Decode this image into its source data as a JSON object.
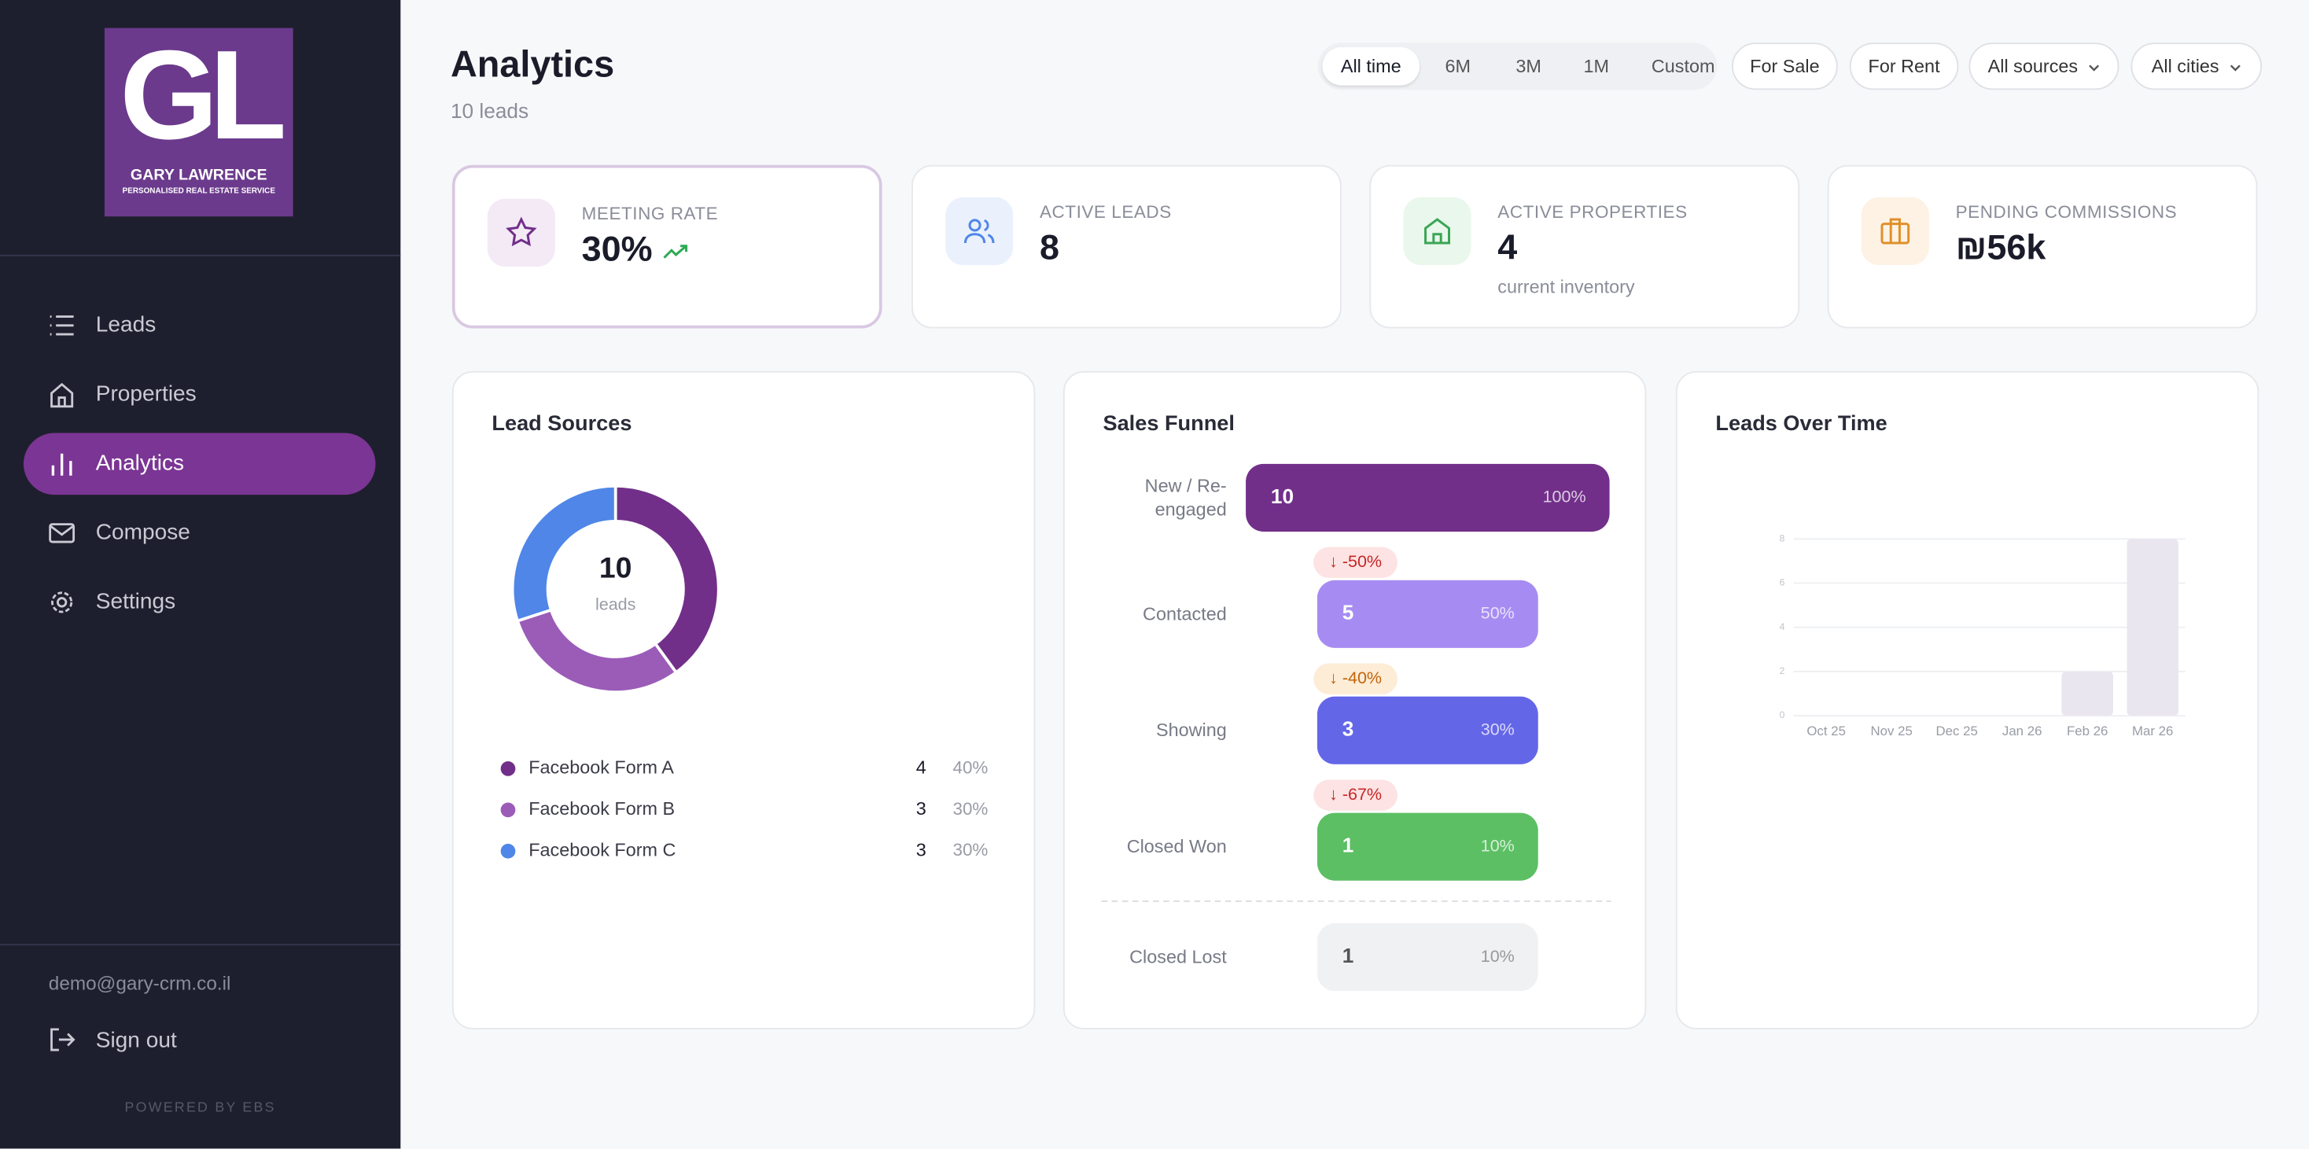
{
  "sidebar": {
    "logo": {
      "initials": "GL",
      "name": "GARY LAWRENCE",
      "tagline": "PERSONALISED REAL ESTATE SERVICE"
    },
    "nav": [
      "Leads",
      "Properties",
      "Analytics",
      "Compose",
      "Settings"
    ],
    "active_nav": 2,
    "email": "demo@gary-crm.co.il",
    "sign_out": "Sign out",
    "powered_by": "POWERED BY EBS"
  },
  "header": {
    "title": "Analytics",
    "subtitle": "10 leads"
  },
  "filters": {
    "periods": [
      "All time",
      "6M",
      "3M",
      "1M",
      "Custom"
    ],
    "active_period": 0,
    "deal_types": [
      "For Sale",
      "For Rent"
    ],
    "dropdowns": [
      "All sources",
      "All cities"
    ]
  },
  "kpis": [
    {
      "label": "MEETING RATE",
      "value": "30%"
    },
    {
      "label": "ACTIVE LEADS",
      "value": 8
    },
    {
      "label": "ACTIVE PROPERTIES",
      "value": 4,
      "note": "current inventory"
    },
    {
      "label": "PENDING COMMISSIONS",
      "value": "₪56k"
    }
  ],
  "lead_sources": {
    "type": "pie",
    "title": "Lead Sources",
    "total": 10,
    "total_label": "leads",
    "categories": [
      "Facebook Form A",
      "Facebook Form B",
      "Facebook Form C"
    ],
    "values": [
      4,
      3,
      3
    ],
    "percent_labels": [
      "40%",
      "30%",
      "30%"
    ],
    "colors": [
      "#722f8a",
      "#9b5cb8",
      "#4f86e8"
    ]
  },
  "funnel": {
    "type": "funnel",
    "title": "Sales Funnel",
    "stages": [
      {
        "name": "New / Re-engaged",
        "value": 10,
        "percent_label": "100%",
        "color": "#722f8a"
      },
      {
        "name": "Contacted",
        "value": 5,
        "percent_label": "50%",
        "color": "#a68cf2"
      },
      {
        "name": "Showing",
        "value": 3,
        "percent_label": "30%",
        "color": "#6466e8"
      },
      {
        "name": "Closed Won",
        "value": 1,
        "percent_label": "10%",
        "color": "#5cbf64"
      }
    ],
    "drops": [
      {
        "label": "↓ -50%",
        "color": "#c62828",
        "background": "#fde3e3"
      },
      {
        "label": "↓ -40%",
        "color": "#c2650a",
        "background": "#fdecd6"
      },
      {
        "label": "↓ -67%",
        "color": "#c62828",
        "background": "#fde3e3"
      }
    ],
    "lost": {
      "name": "Closed Lost",
      "value": 1,
      "percent_label": "10%",
      "color": "#f0f1f3"
    }
  },
  "leads_over_time": {
    "type": "bar",
    "title": "Leads Over Time",
    "categories": [
      "Oct 25",
      "Nov 25",
      "Dec 25",
      "Jan 26",
      "Feb 26",
      "Mar 26"
    ],
    "values": [
      0,
      0,
      0,
      0,
      2,
      8
    ],
    "color": "#e9e6f0",
    "ylim": [
      0,
      8
    ],
    "yticks": [
      0,
      2,
      4,
      6,
      8
    ],
    "grid": true
  }
}
